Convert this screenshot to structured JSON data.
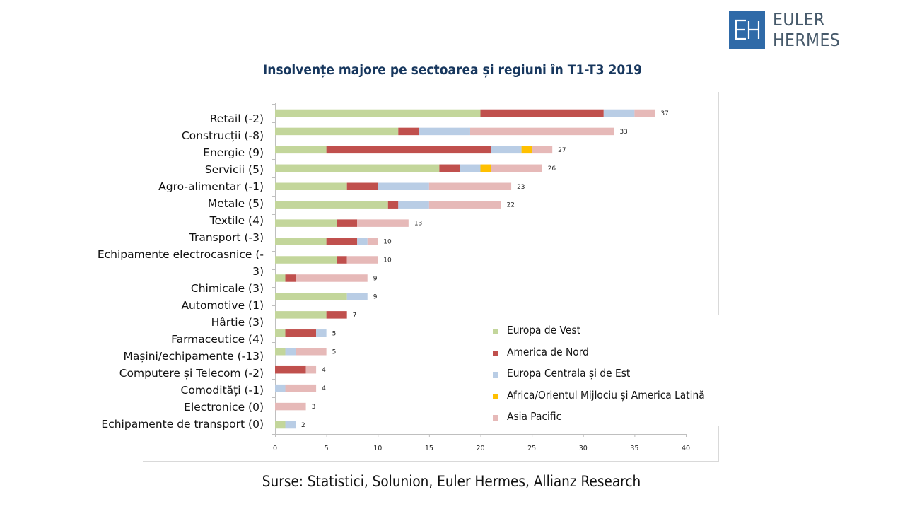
{
  "brand": {
    "logo_mark": "EH",
    "name": "EULER HERMES",
    "color": "#2f6aa8"
  },
  "source": "Surse: Statistici, Solunion, Euler Hermes,  Allianz Research",
  "chart_data": {
    "type": "bar",
    "orientation": "horizontal",
    "stacked": true,
    "title": "Insolvențe majore pe sectoarea și regiuni în T1-T3 2019",
    "xlabel": "",
    "ylabel": "",
    "xlim": [
      0,
      40
    ],
    "x_ticks": [
      0,
      5,
      10,
      15,
      20,
      25,
      30,
      35,
      40
    ],
    "grid": false,
    "legend_position": "bottom-right",
    "categories": [
      "Retail (-2)",
      "Construcții (-8)",
      "Energie (9)",
      "Servicii (5)",
      "Agro-alimentar (-1)",
      "Metale (5)",
      "Textile (4)",
      "Transport (-3)",
      "Echipamente electrocasnice (-3)",
      "Chimicale (3)",
      "Automotive (1)",
      "Hârtie (3)",
      "Farmaceutice (4)",
      "Mașini/echipamente (-13)",
      "Computere și Telecom (-2)",
      "Comodități (-1)",
      "Electronice (0)",
      "Echipamente de transport (0)"
    ],
    "category_label_lines": [
      [
        "Retail (-2)"
      ],
      [
        "Construcții (-8)"
      ],
      [
        "Energie (9)"
      ],
      [
        "Servicii (5)"
      ],
      [
        "Agro-alimentar (-1)"
      ],
      [
        "Metale (5)"
      ],
      [
        "Textile (4)"
      ],
      [
        "Transport (-3)"
      ],
      [
        "Echipamente electrocasnice (-",
        "3)"
      ],
      [
        "Chimicale (3)"
      ],
      [
        "Automotive (1)"
      ],
      [
        "Hârtie (3)"
      ],
      [
        "Farmaceutice (4)"
      ],
      [
        "Mașini/echipamente (-13)"
      ],
      [
        "Computere și Telecom (-2)"
      ],
      [
        "Comodități (-1)"
      ],
      [
        "Electronice (0)"
      ],
      [
        "Echipamente de transport (0)"
      ]
    ],
    "series": [
      {
        "name": "Europa de Vest",
        "color": "#c3d69b",
        "values": [
          20,
          12,
          5,
          16,
          7,
          11,
          6,
          5,
          6,
          1,
          7,
          5,
          1,
          1,
          0,
          0,
          0,
          1
        ]
      },
      {
        "name": "America de Nord",
        "color": "#c0504d",
        "values": [
          12,
          2,
          16,
          2,
          3,
          1,
          2,
          3,
          1,
          1,
          0,
          2,
          3,
          0,
          3,
          0,
          0,
          0
        ]
      },
      {
        "name": "Europa Centrala și de Est",
        "color": "#b9cde5",
        "values": [
          3,
          5,
          3,
          2,
          5,
          3,
          0,
          1,
          0,
          0,
          2,
          0,
          1,
          1,
          0,
          1,
          0,
          1
        ]
      },
      {
        "name": "Africa/Orientul Mijlociu și America Latină",
        "color": "#ffc000",
        "values": [
          0,
          0,
          1,
          1,
          0,
          0,
          0,
          0,
          0,
          0,
          0,
          0,
          0,
          0,
          0,
          0,
          0,
          0
        ]
      },
      {
        "name": "Asia Pacific",
        "color": "#e6b9b8",
        "values": [
          2,
          14,
          2,
          5,
          8,
          7,
          5,
          1,
          3,
          7,
          0,
          0,
          0,
          3,
          1,
          3,
          3,
          0
        ]
      }
    ],
    "totals": [
      37,
      33,
      27,
      26,
      23,
      22,
      13,
      10,
      10,
      9,
      9,
      7,
      5,
      5,
      4,
      4,
      3,
      2
    ]
  }
}
